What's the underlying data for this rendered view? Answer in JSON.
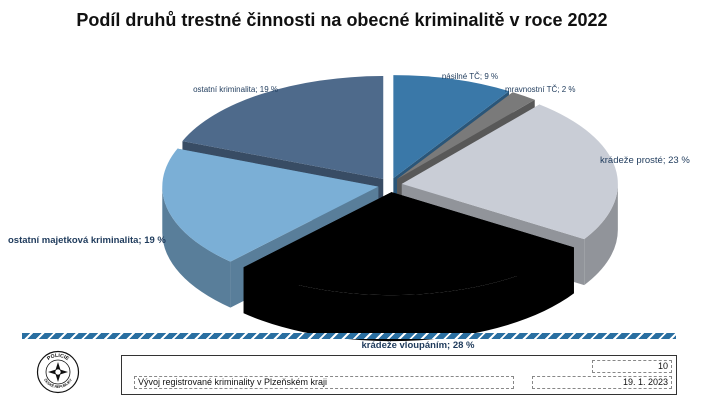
{
  "title": "Podíl druhů trestné činnosti na obecné kriminalitě v roce 2022",
  "chart_data": {
    "type": "pie",
    "title": "Podíl druhů trestné činnosti na obecné kriminalitě v roce 2022",
    "unit": "%",
    "slices": [
      {
        "label": "násilné TČ; 9 %",
        "name": "násilné TČ",
        "value": 9,
        "color": "#3a78a8"
      },
      {
        "label": "mravnostní TČ; 2 %",
        "name": "mravnostní TČ",
        "value": 2,
        "color": "#7a7a7a"
      },
      {
        "label": "krádeže prosté; 23 %",
        "name": "krádeže prosté",
        "value": 23,
        "color": "#c9cdd6"
      },
      {
        "label": "krádeže vloupáním; 28 %",
        "name": "krádeže vloupáním",
        "value": 28,
        "color": "#000000"
      },
      {
        "label": "ostatní majetková kriminalita; 19 %",
        "name": "ostatní majetková kriminalita",
        "value": 19,
        "color": "#7bafd6"
      },
      {
        "label": "ostatní kriminalita; 19 %",
        "name": "ostatní kriminalita",
        "value": 19,
        "color": "#4e6a8b"
      }
    ]
  },
  "footer": {
    "page_number": "10",
    "text": "Vývoj registrované kriminality v Plzeňském kraji",
    "date": "19. 1. 2023"
  },
  "logo": {
    "top_text": "POLICIE",
    "bottom_text": "ČESKÉ REPUBLIKY"
  }
}
